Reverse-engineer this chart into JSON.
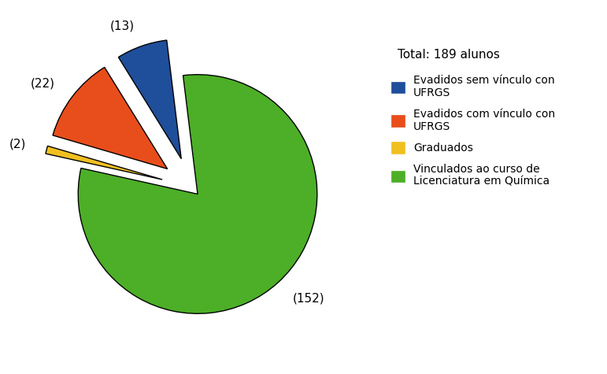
{
  "values": [
    13,
    22,
    2,
    152
  ],
  "colors": [
    "#1F4E9A",
    "#E84E1B",
    "#F0C020",
    "#4CAF27"
  ],
  "labels": [
    "(13)",
    "(22)",
    "(2)",
    "(152)"
  ],
  "legend_title": "Total: 189 alunos",
  "legend_entries": [
    "Evadidos sem vínculo con\nUFRGS",
    "Evadidos com vínculo con\nUFRGS",
    "Graduados",
    "Vinculados ao curso de\nLicenciatura em Química"
  ],
  "explode": [
    0.25,
    0.25,
    0.25,
    0.08
  ],
  "startangle": 97,
  "background_color": "#ffffff",
  "label_fontsize": 11,
  "legend_fontsize": 10,
  "legend_title_fontsize": 11
}
